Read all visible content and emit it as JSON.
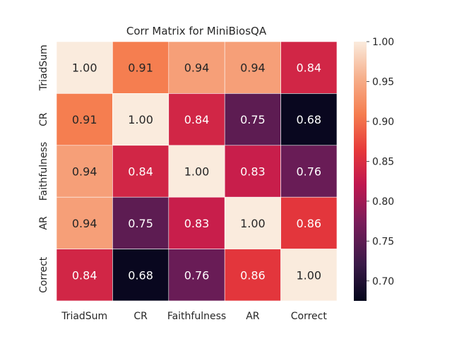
{
  "chart_data": {
    "type": "heatmap",
    "title": "Corr Matrix for MiniBiosQA",
    "xlabel": "",
    "ylabel": "",
    "x_categories": [
      "TriadSum",
      "CR",
      "Faithfulness",
      "AR",
      "Correct"
    ],
    "y_categories": [
      "TriadSum",
      "CR",
      "Faithfulness",
      "AR",
      "Correct"
    ],
    "values": [
      [
        1.0,
        0.91,
        0.94,
        0.94,
        0.84
      ],
      [
        0.91,
        1.0,
        0.84,
        0.75,
        0.68
      ],
      [
        0.94,
        0.84,
        1.0,
        0.83,
        0.76
      ],
      [
        0.94,
        0.75,
        0.83,
        1.0,
        0.86
      ],
      [
        0.84,
        0.68,
        0.76,
        0.86,
        1.0
      ]
    ],
    "value_format": "0.00",
    "colormap": "rocket",
    "vmin": 0.675,
    "vmax": 1.0,
    "colorbar_ticks": [
      0.7,
      0.75,
      0.8,
      0.85,
      0.9,
      0.95,
      1.0
    ],
    "colorbar_tick_labels": [
      "0.70",
      "0.75",
      "0.80",
      "0.85",
      "0.90",
      "0.95",
      "1.00"
    ],
    "colors": {
      "cell_border": "#ffffff",
      "text_dark": "#262626",
      "text_light": "#ffffff"
    }
  }
}
